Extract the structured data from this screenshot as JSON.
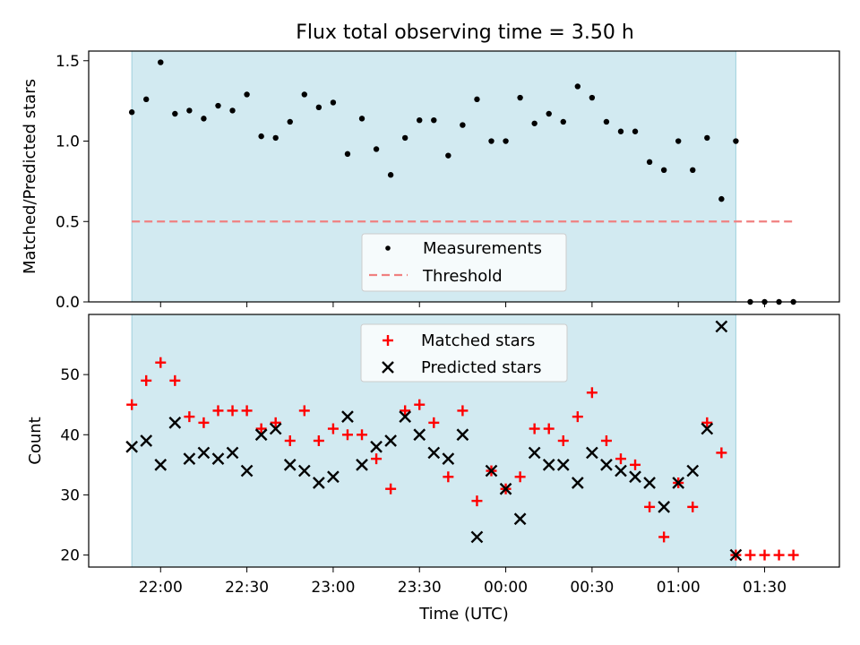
{
  "title": "Flux total observing time = 3.50 h",
  "chart_data": [
    {
      "type": "scatter",
      "title": "Flux total observing time = 3.50 h",
      "xlabel": "",
      "ylabel": "Matched/Predicted stars",
      "ylim": [
        0.0,
        1.56
      ],
      "yticks": [
        "0.0",
        "0.5",
        "1.0",
        "1.5"
      ],
      "shaded_range": [
        "21:50",
        "01:20"
      ],
      "shade_color": "#add8e6",
      "legend_position": "bottom-center",
      "series": [
        {
          "name": "Measurements",
          "marker": "dot",
          "color": "#000000",
          "x": [
            "21:50",
            "21:55",
            "22:00",
            "22:05",
            "22:10",
            "22:15",
            "22:20",
            "22:25",
            "22:30",
            "22:35",
            "22:40",
            "22:45",
            "22:50",
            "22:55",
            "23:00",
            "23:05",
            "23:10",
            "23:15",
            "23:20",
            "23:25",
            "23:30",
            "23:35",
            "23:40",
            "23:45",
            "23:50",
            "23:55",
            "00:00",
            "00:05",
            "00:10",
            "00:15",
            "00:20",
            "00:25",
            "00:30",
            "00:35",
            "00:40",
            "00:45",
            "00:50",
            "00:55",
            "01:00",
            "01:05",
            "01:10",
            "01:15",
            "01:20",
            "01:25",
            "01:30",
            "01:35",
            "01:40"
          ],
          "y": [
            1.18,
            1.26,
            1.49,
            1.17,
            1.19,
            1.14,
            1.22,
            1.19,
            1.29,
            1.03,
            1.02,
            1.12,
            1.29,
            1.21,
            1.24,
            0.92,
            1.14,
            0.95,
            0.79,
            1.02,
            1.13,
            1.13,
            0.91,
            1.1,
            1.26,
            1.0,
            1.0,
            1.27,
            1.11,
            1.17,
            1.12,
            1.34,
            1.27,
            1.12,
            1.06,
            1.06,
            0.87,
            0.82,
            1.0,
            0.82,
            1.02,
            0.64,
            1.0,
            0.0,
            0.0,
            0.0,
            0.0
          ]
        },
        {
          "name": "Threshold",
          "marker": "dashed-line",
          "color": "#f08080",
          "x": [
            "21:50",
            "01:40"
          ],
          "y": [
            0.5,
            0.5
          ]
        }
      ]
    },
    {
      "type": "scatter",
      "xlabel": "Time (UTC)",
      "ylabel": "Count",
      "ylim": [
        18,
        60
      ],
      "yticks": [
        "20",
        "30",
        "40",
        "50"
      ],
      "xticks": [
        "22:00",
        "22:30",
        "23:00",
        "23:30",
        "00:00",
        "00:30",
        "01:00",
        "01:30"
      ],
      "shaded_range": [
        "21:50",
        "01:20"
      ],
      "shade_color": "#add8e6",
      "legend_position": "top-center",
      "series": [
        {
          "name": "Matched stars",
          "marker": "plus",
          "color": "#ff0000",
          "x": [
            "21:50",
            "21:55",
            "22:00",
            "22:05",
            "22:10",
            "22:15",
            "22:20",
            "22:25",
            "22:30",
            "22:35",
            "22:40",
            "22:45",
            "22:50",
            "22:55",
            "23:00",
            "23:05",
            "23:10",
            "23:15",
            "23:20",
            "23:25",
            "23:30",
            "23:35",
            "23:40",
            "23:45",
            "23:50",
            "23:55",
            "00:00",
            "00:05",
            "00:10",
            "00:15",
            "00:20",
            "00:25",
            "00:30",
            "00:35",
            "00:40",
            "00:45",
            "00:50",
            "00:55",
            "01:00",
            "01:05",
            "01:10",
            "01:15",
            "01:20",
            "01:25",
            "01:30",
            "01:35",
            "01:40"
          ],
          "y": [
            45,
            49,
            52,
            49,
            43,
            42,
            44,
            44,
            44,
            41,
            42,
            39,
            44,
            39,
            41,
            40,
            40,
            36,
            31,
            44,
            45,
            42,
            33,
            44,
            29,
            34,
            31,
            33,
            41,
            41,
            39,
            43,
            47,
            39,
            36,
            35,
            28,
            23,
            32,
            28,
            42,
            37,
            20,
            20,
            20,
            20,
            20
          ]
        },
        {
          "name": "Predicted stars",
          "marker": "x",
          "color": "#000000",
          "x": [
            "21:50",
            "21:55",
            "22:00",
            "22:05",
            "22:10",
            "22:15",
            "22:20",
            "22:25",
            "22:30",
            "22:35",
            "22:40",
            "22:45",
            "22:50",
            "22:55",
            "23:00",
            "23:05",
            "23:10",
            "23:15",
            "23:20",
            "23:25",
            "23:30",
            "23:35",
            "23:40",
            "23:45",
            "23:50",
            "23:55",
            "00:00",
            "00:05",
            "00:10",
            "00:15",
            "00:20",
            "00:25",
            "00:30",
            "00:35",
            "00:40",
            "00:45",
            "00:50",
            "00:55",
            "01:00",
            "01:05",
            "01:10",
            "01:15",
            "01:20"
          ],
          "y": [
            38,
            39,
            35,
            42,
            36,
            37,
            36,
            37,
            34,
            40,
            41,
            35,
            34,
            32,
            33,
            43,
            35,
            38,
            39,
            43,
            40,
            37,
            36,
            40,
            23,
            34,
            31,
            26,
            37,
            35,
            35,
            32,
            37,
            35,
            34,
            33,
            32,
            28,
            32,
            34,
            41,
            58,
            20
          ]
        }
      ]
    }
  ]
}
